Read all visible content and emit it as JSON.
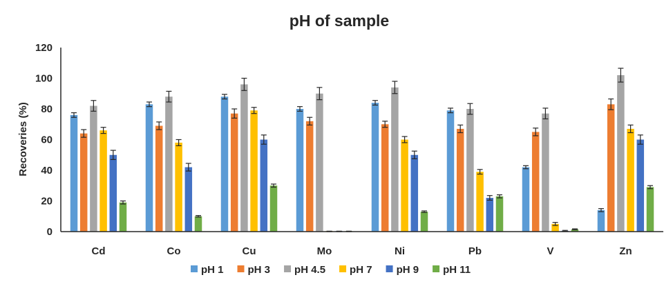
{
  "chart_data": {
    "type": "bar",
    "title": "pH of sample",
    "xlabel": "",
    "ylabel": "Recoveries (%)",
    "ylim": [
      0,
      120
    ],
    "yticks": [
      0,
      20,
      40,
      60,
      80,
      100,
      120
    ],
    "grid": false,
    "legend_position": "bottom",
    "error_bars": true,
    "categories": [
      "Cd",
      "Co",
      "Cu",
      "Mo",
      "Ni",
      "Pb",
      "V",
      "Zn"
    ],
    "series": [
      {
        "name": "pH 1",
        "color": "#5B9BD5",
        "values": [
          76,
          83,
          88,
          80,
          84,
          79,
          42,
          14
        ],
        "errors": [
          1.5,
          1.5,
          1.5,
          1.5,
          1.5,
          1.5,
          1,
          1
        ]
      },
      {
        "name": "pH 3",
        "color": "#ED7D31",
        "values": [
          64,
          69,
          77,
          72,
          70,
          67,
          65,
          83
        ],
        "errors": [
          2.5,
          2.5,
          3,
          2.5,
          2,
          2.5,
          2.5,
          3.5
        ]
      },
      {
        "name": "pH 4.5",
        "color": "#A5A5A5",
        "values": [
          82,
          88,
          96,
          90,
          94,
          80,
          77,
          102
        ],
        "errors": [
          3.5,
          3.5,
          4,
          4,
          4,
          3.5,
          3.5,
          4.5
        ]
      },
      {
        "name": "pH 7",
        "color": "#FFC000",
        "values": [
          66,
          58,
          79,
          0,
          60,
          39,
          5,
          67
        ],
        "errors": [
          2,
          2,
          2,
          0.3,
          2,
          1.5,
          1,
          2.5
        ]
      },
      {
        "name": "pH 9",
        "color": "#4472C4",
        "values": [
          50,
          42,
          60,
          0,
          50,
          22,
          0.5,
          60
        ],
        "errors": [
          3,
          2.5,
          3,
          0.3,
          2.5,
          1.5,
          0.3,
          3
        ]
      },
      {
        "name": "pH 11",
        "color": "#70AD47",
        "values": [
          19,
          10,
          30,
          0,
          13,
          23,
          1.5,
          29
        ],
        "errors": [
          1,
          0.5,
          1,
          0.3,
          0.5,
          1,
          0.3,
          1
        ]
      }
    ]
  }
}
